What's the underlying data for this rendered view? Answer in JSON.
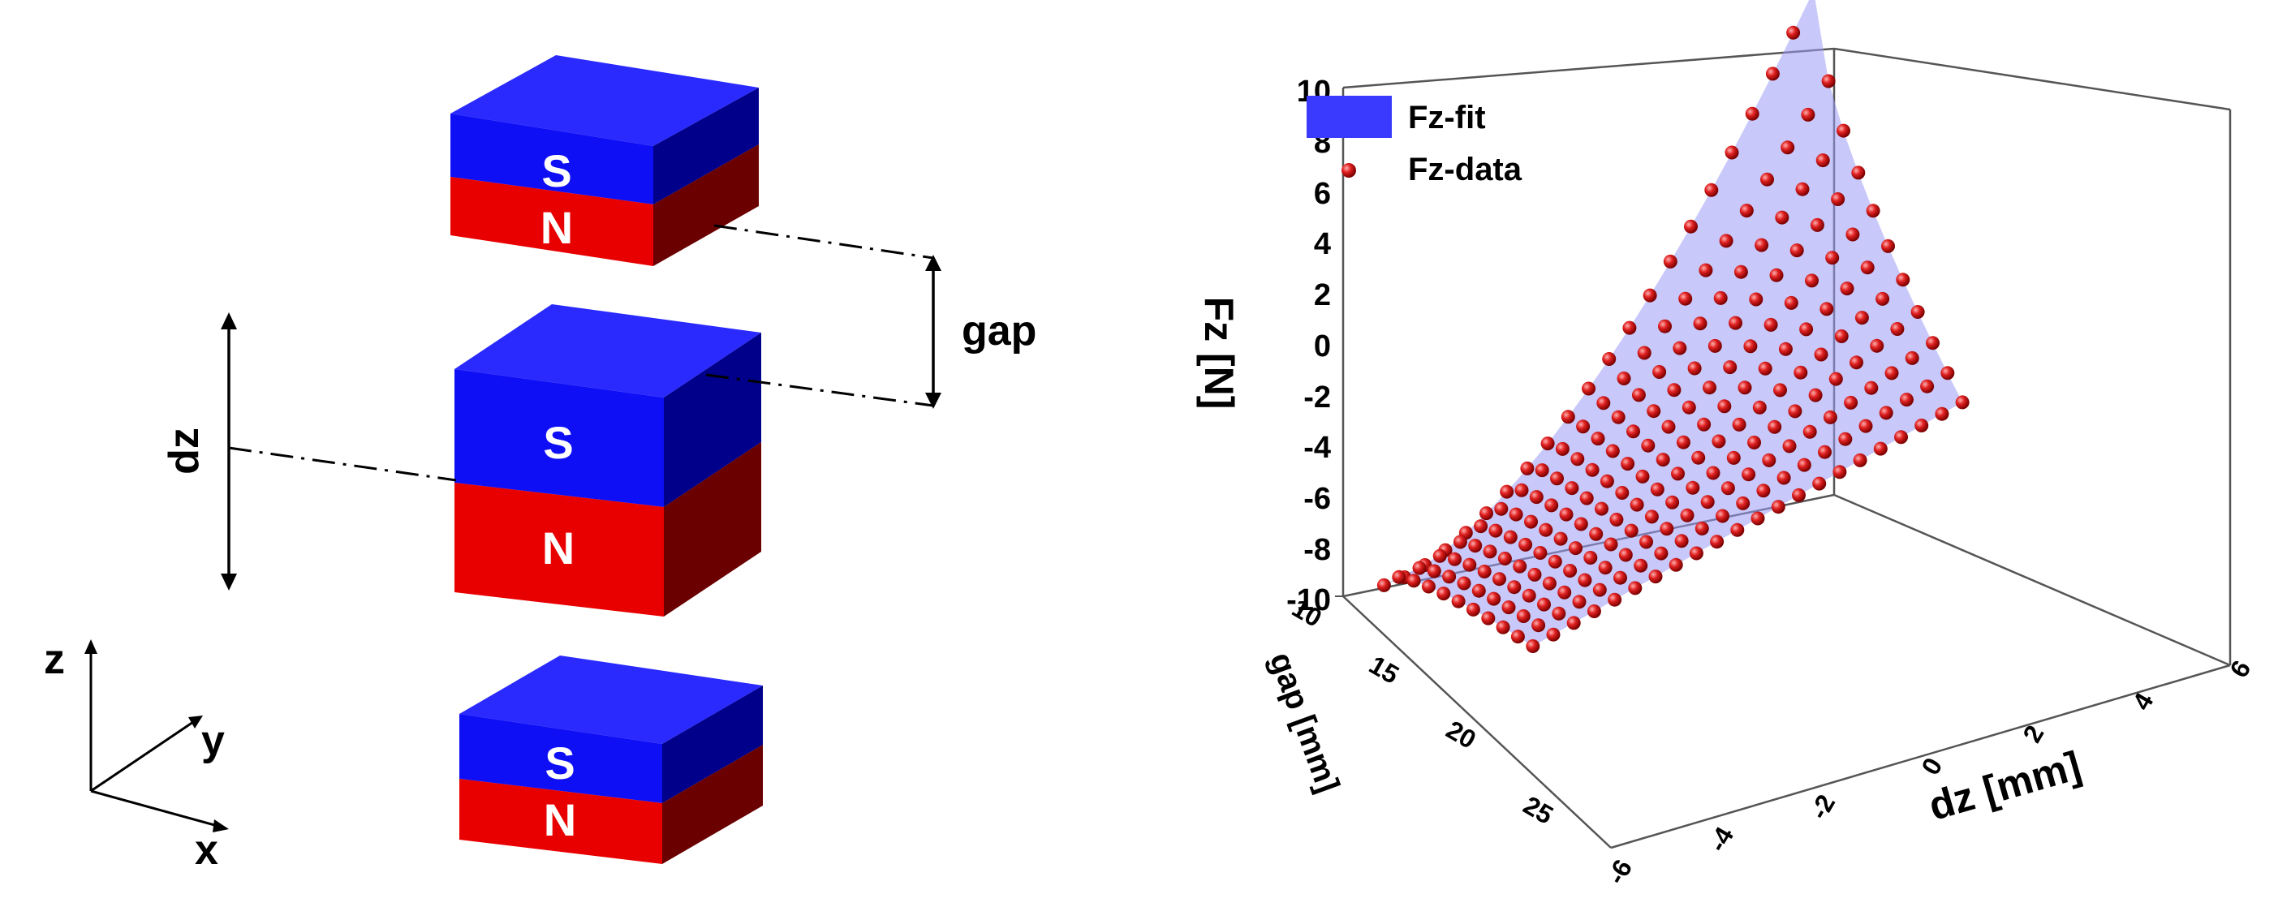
{
  "diagram": {
    "magnet_top": {
      "pole_top": "S",
      "pole_bottom": "N"
    },
    "magnet_middle": {
      "pole_top": "S",
      "pole_bottom": "N"
    },
    "magnet_bottom": {
      "pole_top": "S",
      "pole_bottom": "N"
    },
    "gap_label": "gap",
    "dz_label": "dz",
    "axes": {
      "z": "z",
      "y": "y",
      "x": "x"
    },
    "colors": {
      "south": "#1010ff",
      "north": "#e00000"
    }
  },
  "chart_data": {
    "type": "surface3d",
    "legend": [
      {
        "label": "Fz-fit",
        "marker": "surface",
        "color": "#3a3aff"
      },
      {
        "label": "Fz-data",
        "marker": "sphere",
        "color": "#e02020"
      }
    ],
    "zlabel": "Fz [N]",
    "xlabel": "dz [mm]",
    "ylabel": "gap [mm]",
    "zlim": [
      -10,
      10
    ],
    "xlim": [
      -6,
      6
    ],
    "ylim": [
      10,
      28
    ],
    "z_ticks": [
      "10",
      "8",
      "6",
      "4",
      "2",
      "0",
      "-2",
      "-4",
      "-6",
      "-8",
      "-10"
    ],
    "x_ticks": [
      "-6",
      "-4",
      "-2",
      "0",
      "2",
      "4",
      "6"
    ],
    "y_ticks": [
      "10",
      "15",
      "20",
      "25"
    ],
    "dz_samples": [
      -5.0,
      -4.5,
      -4.0,
      -3.5,
      -3.0,
      -2.5,
      -2.0,
      -1.5,
      -1.0,
      -0.5,
      0.0,
      0.5,
      1.0,
      1.5,
      2.0,
      2.5,
      3.0,
      3.5,
      4.0,
      4.5,
      5.0,
      5.5
    ],
    "gap_samples": [
      10,
      11,
      12,
      13,
      14,
      15,
      16,
      17,
      18,
      19,
      20
    ],
    "corner_values": {
      "dz_-5_gap_10": -9.9,
      "dz_5.5_gap_10": 10.0,
      "dz_5.5_gap_20": -0.7,
      "dz_-5_gap_20": -6.8
    }
  }
}
